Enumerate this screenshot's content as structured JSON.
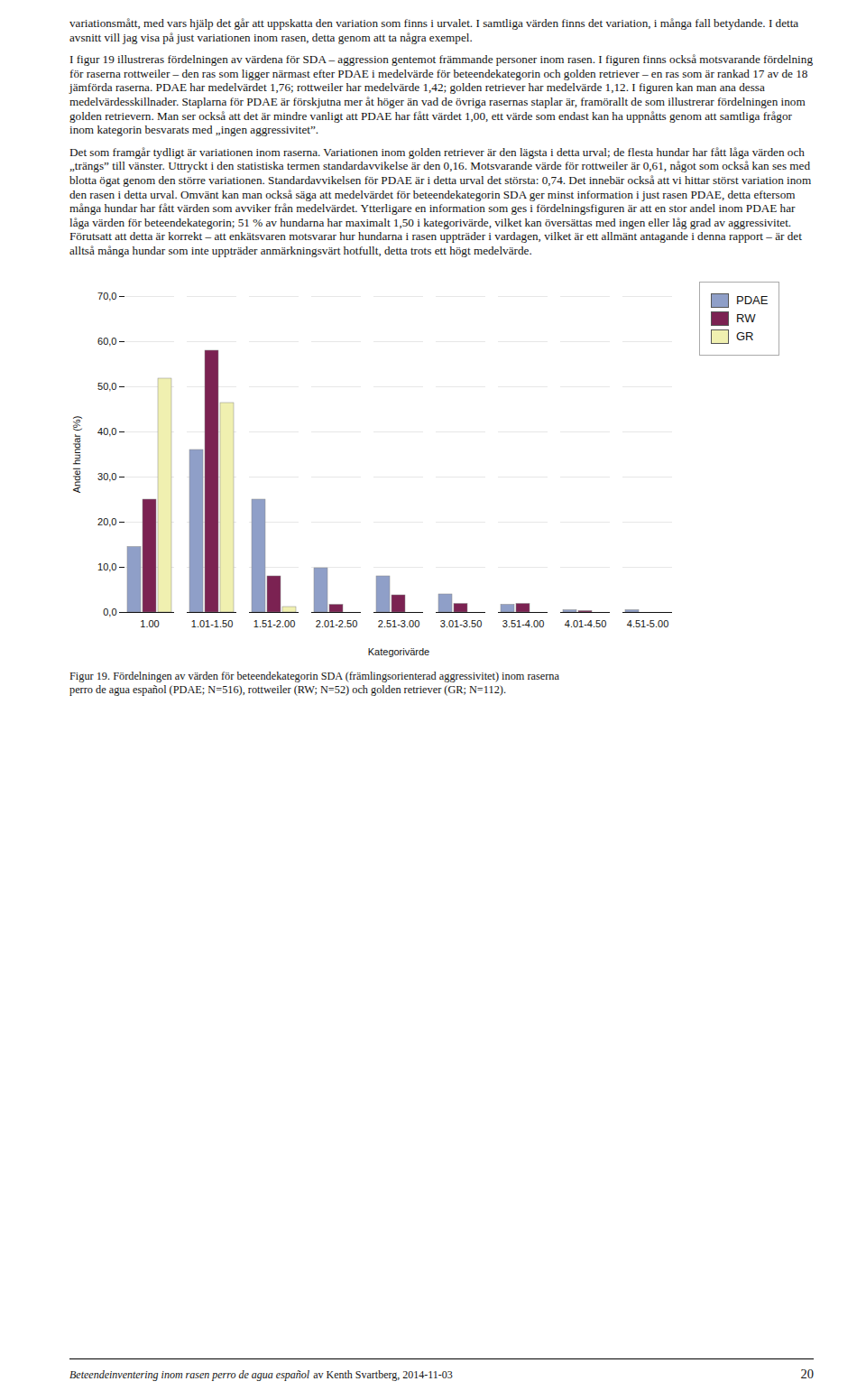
{
  "chart_data": {
    "type": "bar",
    "categories": [
      "1.00",
      "1.01-1.50",
      "1.51-2.00",
      "2.01-2.50",
      "2.51-3.00",
      "3.01-3.50",
      "3.51-4.00",
      "4.01-4.50",
      "4.51-5.00"
    ],
    "series": [
      {
        "name": "PDAE",
        "color": "#8f9fc8",
        "values": [
          14.5,
          36.0,
          25.0,
          9.8,
          8.0,
          4.0,
          1.7,
          0.5,
          0.5
        ]
      },
      {
        "name": "RW",
        "color": "#7b2252",
        "values": [
          25.0,
          58.0,
          8.0,
          1.7,
          3.8,
          1.9,
          1.9,
          0.3,
          0.0
        ]
      },
      {
        "name": "GR",
        "color": "#f0f0b0",
        "values": [
          51.8,
          46.4,
          1.2,
          0.0,
          0.0,
          0.0,
          0.0,
          0.0,
          0.0
        ]
      }
    ],
    "xlabel": "Kategorivärde",
    "ylabel": "Andel hundar (%)",
    "ylim": [
      0,
      70
    ],
    "yticks": [
      {
        "value": 0,
        "label": "0,0"
      },
      {
        "value": 10,
        "label": "10,0"
      },
      {
        "value": 20,
        "label": "20,0"
      },
      {
        "value": 30,
        "label": "30,0"
      },
      {
        "value": 40,
        "label": "40,0"
      },
      {
        "value": 50,
        "label": "50,0"
      },
      {
        "value": 60,
        "label": "60,0"
      },
      {
        "value": 70,
        "label": "70,0"
      }
    ],
    "grid": true,
    "legend": "right",
    "annotations": [
      "variationsmått, med vars hjälp det går att uppskatta den variation som finns i urvalet. I samtliga värden finns det variation, i många fall betydande. I detta avsnitt vill jag visa på just variationen inom rasen, detta genom att ta några exempel.",
      "I figur 19 illustreras fördelningen av värdena för SDA – aggression gentemot främmande personer inom rasen. I figuren finns också motsvarande fördelning för raserna rottweiler – den ras som ligger närmast efter PDAE i medelvärde för beteendekategorin och golden retriever – en ras som är rankad 17 av de 18 jämförda raserna. PDAE har medelvärdet 1,76; rottweiler har medelvärde 1,42; golden retriever har medelvärde 1,12. I figuren kan man ana dessa medelvärdesskillnader. Staplarna för PDAE är förskjutna mer åt höger än vad de övriga rasernas staplar är, framörallt de som illustrerar fördelningen inom golden retrievern. Man ser också att det är mindre vanligt att PDAE har fått värdet 1,00, ett värde som endast kan ha uppnåtts genom att samtliga frågor inom kategorin besvarats med „ingen aggressivitet”.",
      "Det som framgår tydligt är variationen inom raserna. Variationen inom golden retriever är den lägsta i detta urval; de flesta hundar har fått låga värden och „trängs” till vänster. Uttryckt i den statistiska termen standardavvikelse är den 0,16. Motsvarande värde för rottweiler är 0,61, något som också kan ses med blotta ögat genom den större variationen. Standardavvikelsen för PDAE är i detta urval det största: 0,74. Det innebär också att vi hittar störst variation inom den rasen i detta urval. Omvänt kan man också säga att medelvärdet för beteendekategorin SDA ger minst information i just rasen PDAE, detta eftersom många hundar har fått värden som avviker från medelvärdet. Ytterligare en information som ges i fördelningsfiguren är att en stor andel inom PDAE har låga värden för beteendekategorin; 51 % av hundarna har maximalt 1,50 i kategorivärde, vilket kan översättas med ingen eller låg grad av aggressivitet. Förutsatt att detta är korrekt – att enkätsvaren motsvarar hur hundarna i rasen uppträder i vardagen, vilket är ett allmänt antagande i denna rapport – är det alltså många hundar som inte uppträder anmärkningsvärt hotfullt, detta trots ett högt medelvärde.",
      "Figur 19. Fördelningen av värden för beteendekategorin SDA (främlingsorienterad aggressivitet) inom raserna",
      "perro de agua español (PDAE; N=516), rottweiler (RW; N=52) och golden retriever (GR; N=112).",
      "Beteendeinventering inom rasen perro de agua español",
      "av Kenth Svartberg, 2014-11-03",
      "20"
    ]
  }
}
